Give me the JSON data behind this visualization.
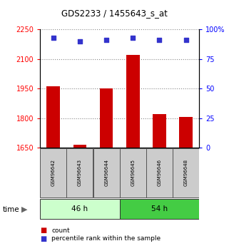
{
  "title": "GDS2233 / 1455643_s_at",
  "categories": [
    "GSM96642",
    "GSM96643",
    "GSM96644",
    "GSM96645",
    "GSM96646",
    "GSM96648"
  ],
  "bar_values": [
    1960,
    1665,
    1950,
    2120,
    1820,
    1805
  ],
  "percentile_values": [
    93,
    90,
    91,
    93,
    91,
    91
  ],
  "bar_color": "#cc0000",
  "percentile_color": "#3333cc",
  "ylim_left": [
    1650,
    2250
  ],
  "ylim_right": [
    0,
    100
  ],
  "yticks_left": [
    1650,
    1800,
    1950,
    2100,
    2250
  ],
  "yticks_right": [
    0,
    25,
    50,
    75,
    100
  ],
  "ytick_labels_right": [
    "0",
    "25",
    "50",
    "75",
    "100%"
  ],
  "group_labels": [
    "46 h",
    "54 h"
  ],
  "group_ranges": [
    [
      0,
      3
    ],
    [
      3,
      6
    ]
  ],
  "group_colors_light": "#ccffcc",
  "group_colors_dark": "#44cc44",
  "bar_width": 0.5,
  "legend_count_label": "count",
  "legend_pct_label": "percentile rank within the sample",
  "grid_color": "#888888",
  "plot_bg_color": "#ffffff",
  "label_box_color": "#cccccc"
}
